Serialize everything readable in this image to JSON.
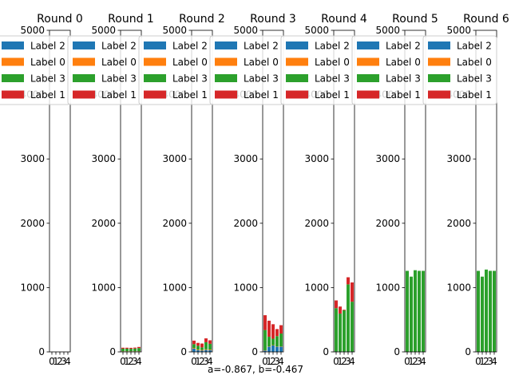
{
  "caption": "a=-0.867, b=-0.467",
  "chart_data": [
    {
      "type": "bar",
      "title": "Round 0",
      "stacked": true,
      "categories": [
        "0",
        "1",
        "2",
        "3",
        "4"
      ],
      "ylim": [
        0,
        5000
      ],
      "yticks": [
        0,
        1000,
        2000,
        3000,
        4000,
        5000
      ],
      "series": [
        {
          "name": "Label 2",
          "color": "#1f77b4",
          "values": [
            0,
            0,
            0,
            0,
            0
          ]
        },
        {
          "name": "Label 0",
          "color": "#ff7f0e",
          "values": [
            0,
            0,
            0,
            0,
            0
          ]
        },
        {
          "name": "Label 3",
          "color": "#2ca02c",
          "values": [
            0,
            0,
            0,
            0,
            0
          ]
        },
        {
          "name": "Label 1",
          "color": "#d62728",
          "values": [
            0,
            0,
            0,
            0,
            0
          ]
        }
      ],
      "legend": "top-right"
    },
    {
      "type": "bar",
      "title": "Round 1",
      "stacked": true,
      "categories": [
        "0",
        "1",
        "2",
        "3",
        "4"
      ],
      "ylim": [
        0,
        5000
      ],
      "yticks": [
        0,
        1000,
        2000,
        3000,
        4000,
        5000
      ],
      "series": [
        {
          "name": "Label 2",
          "color": "#1f77b4",
          "values": [
            5,
            5,
            5,
            5,
            5
          ]
        },
        {
          "name": "Label 0",
          "color": "#ff7f0e",
          "values": [
            5,
            5,
            5,
            5,
            5
          ]
        },
        {
          "name": "Label 3",
          "color": "#2ca02c",
          "values": [
            40,
            40,
            38,
            42,
            50
          ]
        },
        {
          "name": "Label 1",
          "color": "#d62728",
          "values": [
            15,
            15,
            15,
            15,
            17
          ]
        }
      ],
      "legend": "top-right"
    },
    {
      "type": "bar",
      "title": "Round 2",
      "stacked": true,
      "categories": [
        "0",
        "1",
        "2",
        "3",
        "4"
      ],
      "ylim": [
        0,
        5000
      ],
      "yticks": [
        0,
        1000,
        2000,
        3000,
        4000,
        5000
      ],
      "series": [
        {
          "name": "Label 2",
          "color": "#1f77b4",
          "values": [
            50,
            25,
            20,
            30,
            25
          ]
        },
        {
          "name": "Label 0",
          "color": "#ff7f0e",
          "values": [
            10,
            10,
            10,
            10,
            10
          ]
        },
        {
          "name": "Label 3",
          "color": "#2ca02c",
          "values": [
            60,
            60,
            40,
            110,
            90
          ]
        },
        {
          "name": "Label 1",
          "color": "#d62728",
          "values": [
            55,
            45,
            60,
            60,
            55
          ]
        }
      ],
      "legend": "top-right"
    },
    {
      "type": "bar",
      "title": "Round 3",
      "stacked": true,
      "categories": [
        "0",
        "1",
        "2",
        "3",
        "4"
      ],
      "ylim": [
        0,
        5000
      ],
      "yticks": [
        0,
        1000,
        2000,
        3000,
        4000,
        5000
      ],
      "series": [
        {
          "name": "Label 2",
          "color": "#1f77b4",
          "values": [
            20,
            80,
            100,
            80,
            80
          ]
        },
        {
          "name": "Label 0",
          "color": "#ff7f0e",
          "values": [
            5,
            5,
            5,
            5,
            5
          ]
        },
        {
          "name": "Label 3",
          "color": "#2ca02c",
          "values": [
            315,
            150,
            100,
            160,
            200
          ]
        },
        {
          "name": "Label 1",
          "color": "#d62728",
          "values": [
            230,
            250,
            225,
            110,
            130
          ]
        }
      ],
      "legend": "top-right"
    },
    {
      "type": "bar",
      "title": "Round 4",
      "stacked": true,
      "categories": [
        "0",
        "1",
        "2",
        "3",
        "4"
      ],
      "ylim": [
        0,
        5000
      ],
      "yticks": [
        0,
        1000,
        2000,
        3000,
        4000,
        5000
      ],
      "series": [
        {
          "name": "Label 2",
          "color": "#1f77b4",
          "values": [
            5,
            5,
            5,
            5,
            5
          ]
        },
        {
          "name": "Label 0",
          "color": "#ff7f0e",
          "values": [
            0,
            0,
            0,
            0,
            0
          ]
        },
        {
          "name": "Label 3",
          "color": "#2ca02c",
          "values": [
            675,
            590,
            640,
            1045,
            775
          ]
        },
        {
          "name": "Label 1",
          "color": "#d62728",
          "values": [
            120,
            110,
            10,
            110,
            300
          ]
        }
      ],
      "legend": "top-right"
    },
    {
      "type": "bar",
      "title": "Round 5",
      "stacked": true,
      "categories": [
        "0",
        "1",
        "2",
        "3",
        "4"
      ],
      "ylim": [
        0,
        5000
      ],
      "yticks": [
        0,
        1000,
        2000,
        3000,
        4000,
        5000
      ],
      "series": [
        {
          "name": "Label 2",
          "color": "#1f77b4",
          "values": [
            0,
            0,
            0,
            0,
            0
          ]
        },
        {
          "name": "Label 0",
          "color": "#ff7f0e",
          "values": [
            0,
            0,
            0,
            0,
            0
          ]
        },
        {
          "name": "Label 3",
          "color": "#2ca02c",
          "values": [
            1260,
            1170,
            1270,
            1260,
            1260
          ]
        },
        {
          "name": "Label 1",
          "color": "#d62728",
          "values": [
            0,
            0,
            0,
            0,
            0
          ]
        }
      ],
      "legend": "top-right"
    },
    {
      "type": "bar",
      "title": "Round 6",
      "stacked": true,
      "categories": [
        "0",
        "1",
        "2",
        "3",
        "4"
      ],
      "ylim": [
        0,
        5000
      ],
      "yticks": [
        0,
        1000,
        2000,
        3000,
        4000,
        5000
      ],
      "series": [
        {
          "name": "Label 2",
          "color": "#1f77b4",
          "values": [
            0,
            0,
            0,
            0,
            0
          ]
        },
        {
          "name": "Label 0",
          "color": "#ff7f0e",
          "values": [
            0,
            0,
            0,
            0,
            0
          ]
        },
        {
          "name": "Label 3",
          "color": "#2ca02c",
          "values": [
            1260,
            1170,
            1280,
            1260,
            1260
          ]
        },
        {
          "name": "Label 1",
          "color": "#d62728",
          "values": [
            0,
            0,
            0,
            0,
            0
          ]
        }
      ],
      "legend": "top-right"
    }
  ]
}
